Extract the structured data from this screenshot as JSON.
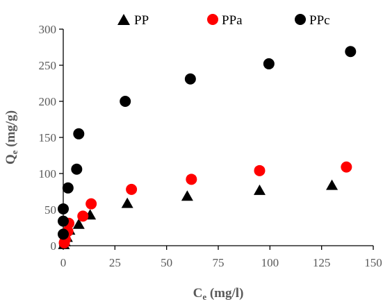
{
  "chart_data": {
    "type": "scatter",
    "xlabel": "C",
    "xlabel_sub": "e",
    "xlabel_unit": " (mg/l)",
    "ylabel": "Q",
    "ylabel_sub": "e",
    "ylabel_unit": " (mg/g)",
    "xlim": [
      0,
      150
    ],
    "ylim": [
      0,
      300
    ],
    "xticks": [
      "0",
      "25",
      "50",
      "75",
      "100",
      "125",
      "150"
    ],
    "yticks": [
      "0",
      "50",
      "100",
      "150",
      "200",
      "250",
      "300"
    ],
    "grid": false,
    "legend_position": "top",
    "series": [
      {
        "name": "PP",
        "marker": "triangle",
        "color": "#000000",
        "points": [
          [
            0.3,
            2
          ],
          [
            0.8,
            6
          ],
          [
            1.8,
            12
          ],
          [
            3,
            22
          ],
          [
            7.5,
            30
          ],
          [
            13,
            43
          ],
          [
            31,
            59
          ],
          [
            60,
            69
          ],
          [
            95,
            77
          ],
          [
            130,
            84
          ]
        ]
      },
      {
        "name": "PPa",
        "marker": "circle",
        "color": "#ff0000",
        "points": [
          [
            0.5,
            4
          ],
          [
            1,
            9
          ],
          [
            2.2,
            20
          ],
          [
            2.7,
            31
          ],
          [
            9.5,
            41
          ],
          [
            13.5,
            58
          ],
          [
            33,
            78
          ],
          [
            62,
            92
          ],
          [
            95,
            104
          ],
          [
            137,
            109
          ]
        ]
      },
      {
        "name": "PPc",
        "marker": "circle",
        "color": "#000000",
        "points": [
          [
            0,
            16
          ],
          [
            0,
            34
          ],
          [
            0,
            51
          ],
          [
            2.3,
            80
          ],
          [
            6.5,
            106
          ],
          [
            7.5,
            155
          ],
          [
            30,
            200
          ],
          [
            61.5,
            231
          ],
          [
            99.5,
            252
          ],
          [
            139,
            269
          ]
        ]
      }
    ]
  }
}
